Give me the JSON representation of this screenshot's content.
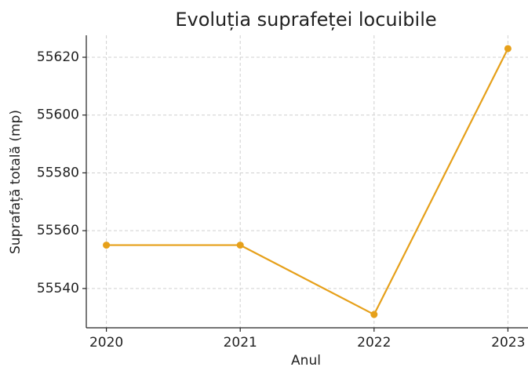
{
  "chart_data": {
    "type": "line",
    "title": "Evoluția suprafeței locuibile",
    "x_label": "Anul",
    "y_label": "Suprafață totală (mp)",
    "x": [
      2020,
      2021,
      2022,
      2023
    ],
    "series": [
      {
        "name": "Suprafață totală",
        "color": "#e6a01a",
        "values": [
          55555,
          55555,
          55531,
          55623
        ]
      }
    ],
    "xlim": [
      2019.85,
      2023.15
    ],
    "xticks": [
      2020,
      2021,
      2022,
      2023
    ],
    "ylim": [
      55526.4,
      55627.6
    ],
    "yticks": [
      55540,
      55560,
      55580,
      55600,
      55620
    ],
    "grid": true
  }
}
